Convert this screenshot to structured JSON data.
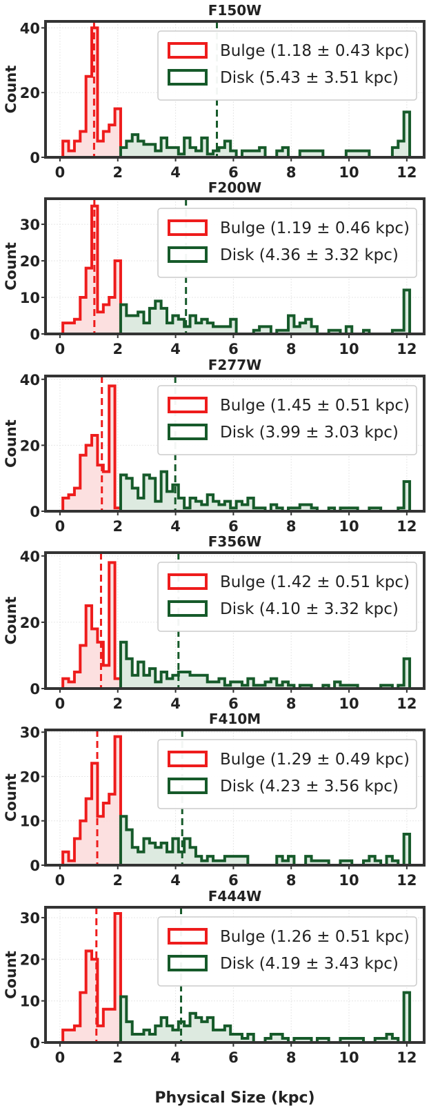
{
  "xlabel": "Physical Size (kpc)",
  "colors": {
    "bulge": "#ee1c1c",
    "bulge_fill": "#fbdada",
    "disk": "#165a2a",
    "disk_fill": "#d7e6da",
    "frame": "#333333",
    "grid": "#e6e6e6"
  },
  "chart_data": [
    {
      "type": "histogram",
      "title": "F150W",
      "ylabel": "Count",
      "xlim": [
        -0.5,
        12.6
      ],
      "ylim": [
        0,
        42
      ],
      "yticks": [
        0,
        20,
        40
      ],
      "xticks": [
        0,
        2,
        4,
        6,
        8,
        10,
        12
      ],
      "bin_width": 0.2,
      "series": [
        {
          "name": "Bulge",
          "legend": "Bulge (1.18 ± 0.43 kpc)",
          "median": 1.18,
          "start": 0.1,
          "values": [
            5,
            2,
            5,
            8,
            25,
            40,
            5,
            8,
            10,
            15
          ]
        },
        {
          "name": "Disk",
          "legend": "Disk (5.43 ± 3.51 kpc)",
          "median": 5.43,
          "start": 2.1,
          "values": [
            3,
            5,
            7,
            5,
            4,
            4,
            2,
            6,
            3,
            3,
            1,
            6,
            3,
            2,
            6,
            1,
            2,
            3,
            5,
            2,
            0,
            2,
            2,
            2,
            3,
            0,
            0,
            2,
            3,
            0,
            0,
            2,
            2,
            2,
            2,
            0,
            0,
            0,
            0,
            2,
            2,
            2,
            2,
            0,
            0,
            0,
            0,
            3,
            5,
            14
          ]
        }
      ]
    },
    {
      "type": "histogram",
      "title": "F200W",
      "ylabel": "Count",
      "xlim": [
        -0.5,
        12.6
      ],
      "ylim": [
        0,
        37
      ],
      "yticks": [
        0,
        10,
        20,
        30
      ],
      "xticks": [
        0,
        2,
        4,
        6,
        8,
        10,
        12
      ],
      "bin_width": 0.2,
      "series": [
        {
          "name": "Bulge",
          "legend": "Bulge (1.19 ± 0.46 kpc)",
          "median": 1.19,
          "start": 0.1,
          "values": [
            3,
            3,
            4,
            10,
            18,
            35,
            6,
            8,
            10,
            20
          ]
        },
        {
          "name": "Disk",
          "legend": "Disk (4.36 ± 3.32 kpc)",
          "median": 4.36,
          "start": 2.1,
          "values": [
            8,
            5,
            5,
            6,
            3,
            7,
            9,
            7,
            3,
            5,
            4,
            2,
            5,
            3,
            4,
            3,
            2,
            2,
            2,
            4,
            0,
            0,
            0,
            1,
            2,
            2,
            0,
            1,
            1,
            5,
            2,
            3,
            4,
            2,
            0,
            0,
            1,
            1,
            0,
            2,
            0,
            0,
            1,
            0,
            0,
            0,
            0,
            1,
            1,
            12
          ]
        }
      ]
    },
    {
      "type": "histogram",
      "title": "F277W",
      "ylabel": "Count",
      "xlim": [
        -0.5,
        12.6
      ],
      "ylim": [
        0,
        41
      ],
      "yticks": [
        0,
        20,
        40
      ],
      "xticks": [
        0,
        2,
        4,
        6,
        8,
        10,
        12
      ],
      "bin_width": 0.2,
      "series": [
        {
          "name": "Bulge",
          "legend": "Bulge (1.45 ± 0.51 kpc)",
          "median": 1.45,
          "start": 0.1,
          "values": [
            4,
            5,
            7,
            17,
            20,
            23,
            14,
            12,
            38,
            1
          ]
        },
        {
          "name": "Disk",
          "legend": "Disk (3.99 ± 3.03 kpc)",
          "median": 3.99,
          "start": 2.1,
          "values": [
            11,
            10,
            7,
            4,
            11,
            10,
            3,
            12,
            6,
            8,
            4,
            1,
            4,
            3,
            2,
            5,
            3,
            2,
            3,
            1,
            3,
            2,
            4,
            1,
            1,
            0,
            2,
            1,
            0,
            1,
            1,
            2,
            2,
            1,
            0,
            0,
            1,
            0,
            1,
            1,
            1,
            0,
            0,
            1,
            1,
            0,
            0,
            0,
            1,
            9
          ]
        }
      ]
    },
    {
      "type": "histogram",
      "title": "F356W",
      "ylabel": "Count",
      "xlim": [
        -0.5,
        12.6
      ],
      "ylim": [
        0,
        41
      ],
      "yticks": [
        0,
        20,
        40
      ],
      "xticks": [
        0,
        2,
        4,
        6,
        8,
        10,
        12
      ],
      "bin_width": 0.2,
      "series": [
        {
          "name": "Bulge",
          "legend": "Bulge (1.42 ± 0.51 kpc)",
          "median": 1.42,
          "start": 0.1,
          "values": [
            3,
            2,
            5,
            13,
            25,
            18,
            14,
            7,
            38,
            3
          ]
        },
        {
          "name": "Disk",
          "legend": "Disk (4.10 ± 3.32 kpc)",
          "median": 4.1,
          "start": 2.1,
          "values": [
            14,
            9,
            4,
            8,
            4,
            6,
            2,
            5,
            3,
            4,
            5,
            5,
            4,
            4,
            4,
            2,
            2,
            3,
            1,
            2,
            2,
            1,
            3,
            1,
            1,
            2,
            3,
            1,
            2,
            1,
            0,
            1,
            1,
            0,
            0,
            1,
            0,
            2,
            1,
            1,
            1,
            0,
            0,
            0,
            0,
            1,
            1,
            0,
            1,
            9
          ]
        }
      ]
    },
    {
      "type": "histogram",
      "title": "F410M",
      "ylabel": "Count",
      "xlim": [
        -0.5,
        12.6
      ],
      "ylim": [
        0,
        30.5
      ],
      "yticks": [
        0,
        10,
        20,
        30
      ],
      "xticks": [
        0,
        2,
        4,
        6,
        8,
        10,
        12
      ],
      "bin_width": 0.2,
      "series": [
        {
          "name": "Bulge",
          "legend": "Bulge (1.29 ± 0.49 kpc)",
          "median": 1.29,
          "start": 0.1,
          "values": [
            3,
            1,
            6,
            10,
            15,
            23,
            11,
            14,
            16,
            29
          ]
        },
        {
          "name": "Disk",
          "legend": "Disk (4.23 ± 3.56 kpc)",
          "median": 4.23,
          "start": 2.1,
          "values": [
            11,
            8,
            4,
            3,
            6,
            5,
            4,
            5,
            3,
            6,
            3,
            6,
            4,
            2,
            1,
            2,
            1,
            1,
            2,
            2,
            2,
            2,
            0,
            0,
            0,
            0,
            0,
            2,
            1,
            2,
            0,
            0,
            2,
            1,
            1,
            1,
            0,
            0,
            1,
            1,
            0,
            0,
            1,
            2,
            1,
            0,
            2,
            1,
            0,
            7
          ]
        }
      ]
    },
    {
      "type": "histogram",
      "title": "F444W",
      "ylabel": "Count",
      "xlim": [
        -0.5,
        12.6
      ],
      "ylim": [
        0,
        32.5
      ],
      "yticks": [
        0,
        10,
        20,
        30
      ],
      "xticks": [
        0,
        2,
        4,
        6,
        8,
        10,
        12
      ],
      "bin_width": 0.2,
      "series": [
        {
          "name": "Bulge",
          "legend": "Bulge (1.26 ± 0.51 kpc)",
          "median": 1.26,
          "start": 0.1,
          "values": [
            3,
            3,
            4,
            12,
            22,
            20,
            4,
            8,
            8,
            31
          ]
        },
        {
          "name": "Disk",
          "legend": "Disk (4.19 ± 3.43 kpc)",
          "median": 4.19,
          "start": 2.1,
          "values": [
            11,
            5,
            2,
            2,
            3,
            2,
            4,
            6,
            4,
            3,
            5,
            4,
            7,
            6,
            5,
            6,
            3,
            3,
            4,
            2,
            2,
            1,
            2,
            0,
            0,
            1,
            2,
            2,
            1,
            0,
            1,
            1,
            1,
            0,
            1,
            1,
            0,
            0,
            1,
            1,
            1,
            1,
            0,
            0,
            1,
            1,
            2,
            1,
            0,
            12
          ]
        }
      ]
    }
  ]
}
